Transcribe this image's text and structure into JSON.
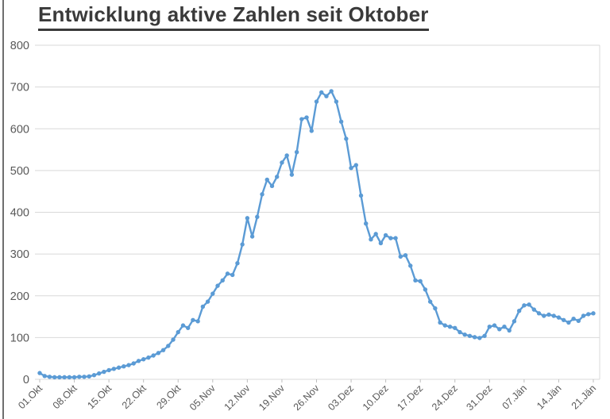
{
  "chart_data": {
    "type": "line",
    "title": "Entwicklung aktive Zahlen seit Oktober",
    "ylabel": "",
    "xlabel": "",
    "ylim": [
      0,
      800
    ],
    "y_ticks": [
      0,
      100,
      200,
      300,
      400,
      500,
      600,
      700,
      800
    ],
    "grid": "horizontal",
    "legend": "none",
    "x_tick_labels": [
      "01.Okt",
      "08.Okt",
      "15.Okt",
      "22.Okt",
      "29.Okt",
      "05.Nov",
      "12.Nov",
      "19.Nov",
      "26.Nov",
      "03.Dez",
      "10.Dez",
      "17.Dez",
      "24.Dez",
      "31.Dez",
      "07.Jän",
      "14.Jän",
      "21.Jän"
    ],
    "x_tick_indices": [
      0,
      7,
      14,
      21,
      28,
      35,
      42,
      49,
      56,
      63,
      70,
      77,
      84,
      91,
      98,
      105,
      112
    ],
    "series": [
      {
        "name": "aktive Zahlen",
        "color": "#5b9bd5",
        "marker": "circle",
        "values": [
          15,
          8,
          6,
          5,
          5,
          5,
          5,
          5,
          6,
          6,
          7,
          10,
          14,
          18,
          22,
          25,
          28,
          31,
          34,
          38,
          44,
          48,
          52,
          57,
          63,
          70,
          80,
          95,
          113,
          129,
          123,
          142,
          139,
          174,
          186,
          205,
          224,
          237,
          253,
          250,
          278,
          323,
          386,
          342,
          389,
          443,
          478,
          463,
          485,
          519,
          536,
          490,
          544,
          623,
          627,
          595,
          665,
          687,
          678,
          690,
          665,
          617,
          576,
          506,
          513,
          440,
          373,
          335,
          348,
          326,
          345,
          338,
          338,
          294,
          297,
          272,
          237,
          235,
          215,
          186,
          170,
          136,
          129,
          126,
          123,
          113,
          107,
          104,
          101,
          99,
          104,
          126,
          129,
          120,
          126,
          117,
          139,
          164,
          177,
          179,
          167,
          158,
          152,
          155,
          152,
          148,
          142,
          136,
          145,
          140,
          152,
          156,
          158
        ]
      }
    ],
    "colors": {
      "line": "#5b9bd5",
      "gridline": "#d9d9d9",
      "tick_mark": "#bfbfbf",
      "axis_label": "#595959",
      "title": "#3a3a3a",
      "background": "#ffffff"
    }
  }
}
